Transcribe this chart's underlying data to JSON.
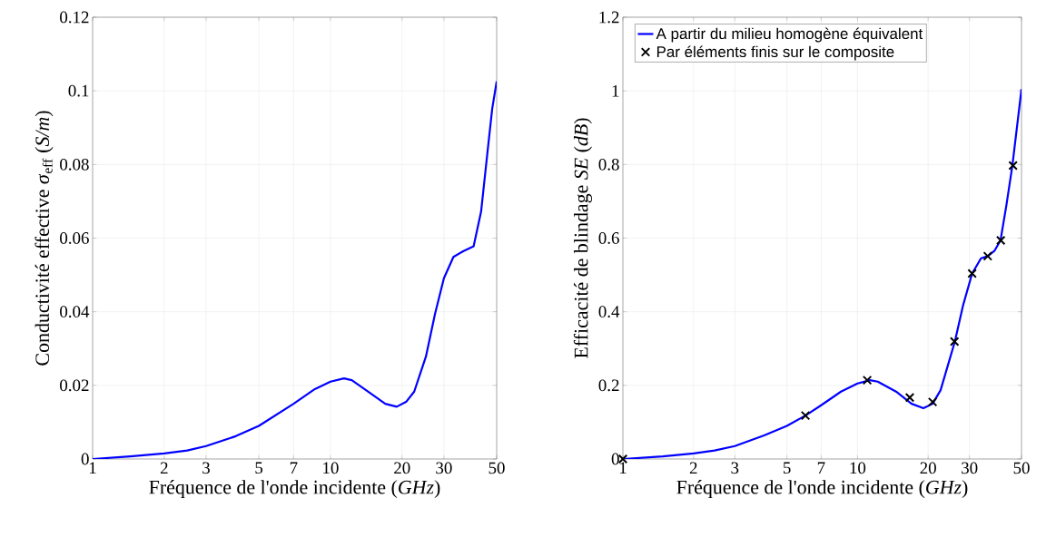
{
  "chart_data": [
    {
      "type": "line",
      "xlabel": "Fréquence de l'onde incidente (*GHz*)",
      "ylabel": "Conductivité effective *σ*$_{eff}$ (*S/m*)",
      "log": "x",
      "grid": true,
      "line_style": "solid",
      "color": "#0000ff",
      "x": [
        1,
        1.44,
        2,
        2.5,
        3,
        4,
        5,
        7,
        8.6,
        10,
        11.4,
        12.3,
        14.7,
        17,
        19,
        20.8,
        22.5,
        25.2,
        27.5,
        30,
        32.9,
        36.3,
        40,
        43,
        45.8,
        47.9,
        50
      ],
      "values": [
        0,
        0.0007,
        0.0015,
        0.0023,
        0.0035,
        0.0062,
        0.009,
        0.015,
        0.019,
        0.021,
        0.0219,
        0.0214,
        0.0179,
        0.015,
        0.0142,
        0.0155,
        0.0183,
        0.0278,
        0.0393,
        0.0491,
        0.0549,
        0.0565,
        0.0578,
        0.0672,
        0.0837,
        0.0952,
        0.1026
      ],
      "xlim": [
        1,
        50
      ],
      "xticks": [
        1,
        2,
        3,
        5,
        7,
        10,
        20,
        30,
        50
      ],
      "ylim": [
        0,
        0.12
      ],
      "yticks": [
        0,
        0.02,
        0.04,
        0.06,
        0.08,
        0.1,
        0.12
      ]
    },
    {
      "type": "line",
      "xlabel": "Fréquence de l'onde incidente (*GHz*)",
      "ylabel": "Efficacité de blindage *SE* (*dB*)",
      "log": "x",
      "grid": true,
      "legend": "top left",
      "xlim": [
        1,
        50
      ],
      "xticks": [
        1,
        2,
        3,
        5,
        7,
        10,
        20,
        30,
        50
      ],
      "ylim": [
        0,
        1.2
      ],
      "yticks": [
        0,
        0.2,
        0.4,
        0.6,
        0.8,
        1,
        1.2
      ],
      "series": [
        {
          "name": "A partir du milieu homogène équivalent",
          "type": "line",
          "color": "#0000ff",
          "line_style": "solid",
          "x": [
            1,
            1.48,
            2,
            2.46,
            3,
            4,
            5,
            6,
            7,
            8.5,
            10,
            11.3,
            12.2,
            14.6,
            17,
            19.1,
            20.9,
            22.6,
            26,
            28.2,
            30.8,
            33.6,
            35.9,
            38.4,
            40.7,
            43.1,
            45.7,
            50
          ],
          "values": [
            0,
            0.007,
            0.015,
            0.023,
            0.035,
            0.064,
            0.09,
            0.118,
            0.146,
            0.183,
            0.205,
            0.214,
            0.21,
            0.183,
            0.15,
            0.138,
            0.15,
            0.187,
            0.319,
            0.418,
            0.504,
            0.545,
            0.551,
            0.566,
            0.594,
            0.689,
            0.796,
            1.005
          ]
        },
        {
          "name": "Par éléments finis sur le composite",
          "type": "scatter",
          "color": "#000000",
          "marker": "cross",
          "x": [
            1,
            6,
            11,
            16.7,
            20.9,
            25.9,
            30.8,
            35.9,
            40.8,
            46
          ],
          "values": [
            0,
            0.118,
            0.214,
            0.167,
            0.155,
            0.319,
            0.504,
            0.551,
            0.594,
            0.797
          ]
        }
      ]
    }
  ]
}
